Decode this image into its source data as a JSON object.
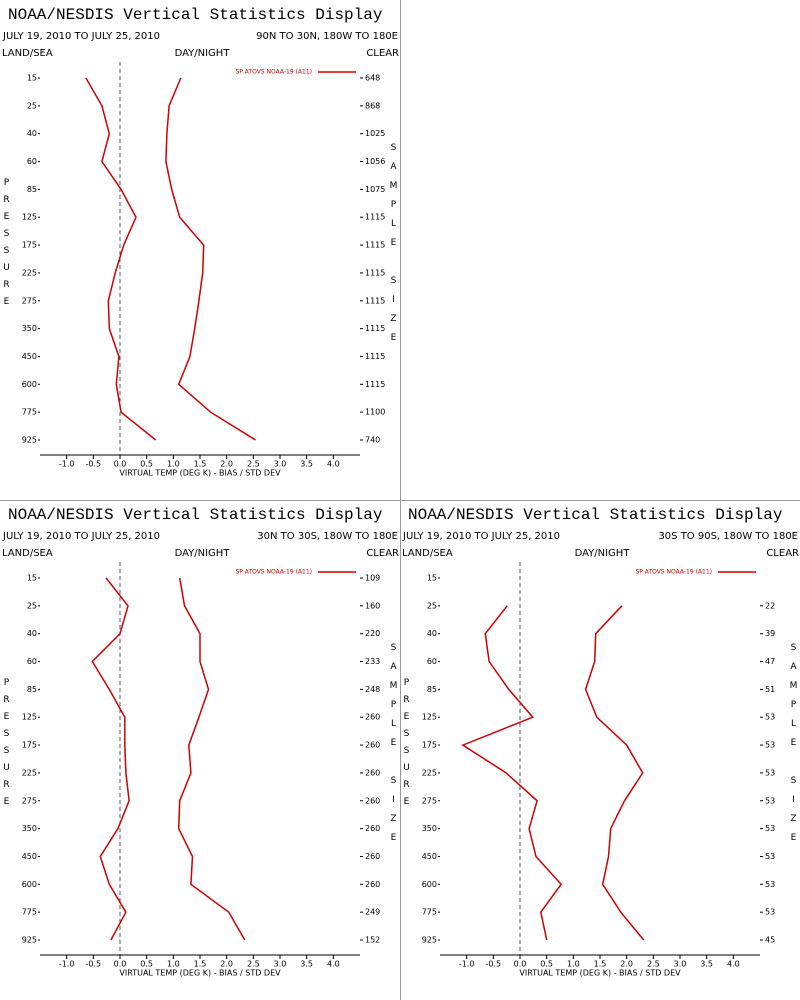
{
  "chart_data": [
    {
      "type": "line",
      "orientation": "horizontal",
      "title": "NOAA/NESDIS Vertical Statistics Display",
      "date_range": "JULY 19, 2010 TO JULY 25, 2010",
      "region": "90N TO 30N, 180W TO 180E",
      "surface_label": "LAND/SEA",
      "time_label": "DAY/NIGHT",
      "sky_label": "CLEAR",
      "y_label": "PRESSURE",
      "y2_label": "SAMPLE SIZE",
      "x_label": "VIRTUAL TEMP (DEG K) - BIAS / STD DEV",
      "legend": "SP ATOVS NOAA-19 (A11)",
      "categories": [
        "15",
        "25",
        "40",
        "60",
        "85",
        "125",
        "175",
        "225",
        "275",
        "350",
        "450",
        "600",
        "775",
        "925"
      ],
      "sample_size": [
        "648",
        "868",
        "1025",
        "1056",
        "1075",
        "1115",
        "1115",
        "1115",
        "1115",
        "1115",
        "1115",
        "1115",
        "1100",
        "740"
      ],
      "series": [
        {
          "color": "#d00000",
          "values": [
            -0.64,
            -0.34,
            -0.2,
            -0.34,
            0.02,
            0.3,
            0.07,
            -0.09,
            -0.22,
            -0.2,
            -0.02,
            -0.07,
            0.02,
            0.67
          ]
        },
        {
          "color": "#d00000",
          "values": [
            1.14,
            0.92,
            0.88,
            0.86,
            0.97,
            1.12,
            1.57,
            1.55,
            1.48,
            1.4,
            1.31,
            1.1,
            1.7,
            2.54
          ]
        }
      ],
      "xlim": [
        -1.5,
        4.5
      ],
      "xticks": [
        {
          "value": -1,
          "label": "-1.0"
        },
        {
          "value": -0.5,
          "label": "-0.5"
        },
        {
          "value": 0,
          "label": "0.0"
        },
        {
          "value": 0.5,
          "label": "0.5"
        },
        {
          "value": 1,
          "label": "1.0"
        },
        {
          "value": 1.5,
          "label": "1.5"
        },
        {
          "value": 2,
          "label": "2.0"
        },
        {
          "value": 2.5,
          "label": "2.5"
        },
        {
          "value": 3,
          "label": "3.0"
        },
        {
          "value": 3.5,
          "label": "3.5"
        },
        {
          "value": 4,
          "label": "4.0"
        }
      ]
    },
    {
      "type": "line",
      "orientation": "horizontal",
      "title": "NOAA/NESDIS Vertical Statistics Display",
      "date_range": "JULY 19, 2010 TO JULY 25, 2010",
      "region": "30N TO 30S, 180W TO 180E",
      "surface_label": "LAND/SEA",
      "time_label": "DAY/NIGHT",
      "sky_label": "CLEAR",
      "y_label": "PRESSURE",
      "y2_label": "SAMPLE SIZE",
      "x_label": "VIRTUAL TEMP (DEG K) - BIAS / STD DEV",
      "legend": "SP ATOVS NOAA-19 (A11)",
      "categories": [
        "15",
        "25",
        "40",
        "60",
        "85",
        "125",
        "175",
        "225",
        "275",
        "350",
        "450",
        "600",
        "775",
        "925"
      ],
      "sample_size": [
        "109",
        "160",
        "220",
        "233",
        "248",
        "260",
        "260",
        "260",
        "260",
        "260",
        "260",
        "260",
        "249",
        "152"
      ],
      "series": [
        {
          "color": "#d00000",
          "values": [
            -0.26,
            0.15,
            0,
            -0.52,
            -0.2,
            0.09,
            0.09,
            0.11,
            0.17,
            -0.04,
            -0.37,
            -0.2,
            0.11,
            -0.17
          ]
        },
        {
          "color": "#d00000",
          "values": [
            1.12,
            1.21,
            1.5,
            1.5,
            1.66,
            1.48,
            1.29,
            1.33,
            1.12,
            1.1,
            1.36,
            1.33,
            2.04,
            2.34
          ]
        }
      ],
      "xlim": [
        -1.5,
        4.5
      ],
      "xticks": [
        {
          "value": -1,
          "label": "-1.0"
        },
        {
          "value": -0.5,
          "label": "-0.5"
        },
        {
          "value": 0,
          "label": "0.0"
        },
        {
          "value": 0.5,
          "label": "0.5"
        },
        {
          "value": 1,
          "label": "1.0"
        },
        {
          "value": 1.5,
          "label": "1.5"
        },
        {
          "value": 2,
          "label": "2.0"
        },
        {
          "value": 2.5,
          "label": "2.5"
        },
        {
          "value": 3,
          "label": "3.0"
        },
        {
          "value": 3.5,
          "label": "3.5"
        },
        {
          "value": 4,
          "label": "4.0"
        }
      ]
    },
    {
      "type": "line",
      "orientation": "horizontal",
      "title": "NOAA/NESDIS Vertical Statistics Display",
      "date_range": "JULY 19, 2010 TO JULY 25, 2010",
      "region": "30S TO 90S, 180W TO 180E",
      "surface_label": "LAND/SEA",
      "time_label": "DAY/NIGHT",
      "sky_label": "CLEAR",
      "y_label": "PRESSURE",
      "y2_label": "SAMPLE SIZE",
      "x_label": "VIRTUAL TEMP (DEG K) - BIAS / STD DEV",
      "legend": "SP ATOVS NOAA-19 (A11)",
      "categories": [
        "15",
        "25",
        "40",
        "60",
        "85",
        "125",
        "175",
        "225",
        "275",
        "350",
        "450",
        "600",
        "775",
        "925"
      ],
      "sample_size": [
        null,
        "22",
        "39",
        "47",
        "51",
        "53",
        "53",
        "53",
        "53",
        "53",
        "53",
        "53",
        "53",
        "45"
      ],
      "series": [
        {
          "color": "#d00000",
          "values": [
            null,
            -0.24,
            -0.65,
            -0.58,
            -0.21,
            0.24,
            -1.07,
            -0.26,
            0.32,
            0.17,
            0.3,
            0.77,
            0.39,
            0.5
          ]
        },
        {
          "color": "#d00000",
          "values": [
            null,
            1.91,
            1.42,
            1.4,
            1.23,
            1.44,
            2.0,
            2.3,
            1.96,
            1.7,
            1.66,
            1.55,
            1.89,
            2.32
          ]
        }
      ],
      "xlim": [
        -1.5,
        4.5
      ],
      "xticks": [
        {
          "value": -1,
          "label": "-1.0"
        },
        {
          "value": -0.5,
          "label": "-0.5"
        },
        {
          "value": 0,
          "label": "0.0"
        },
        {
          "value": 0.5,
          "label": "0.5"
        },
        {
          "value": 1,
          "label": "1.0"
        },
        {
          "value": 1.5,
          "label": "1.5"
        },
        {
          "value": 2,
          "label": "2.0"
        },
        {
          "value": 2.5,
          "label": "2.5"
        },
        {
          "value": 3,
          "label": "3.0"
        },
        {
          "value": 3.5,
          "label": "3.5"
        },
        {
          "value": 4,
          "label": "4.0"
        }
      ]
    }
  ]
}
